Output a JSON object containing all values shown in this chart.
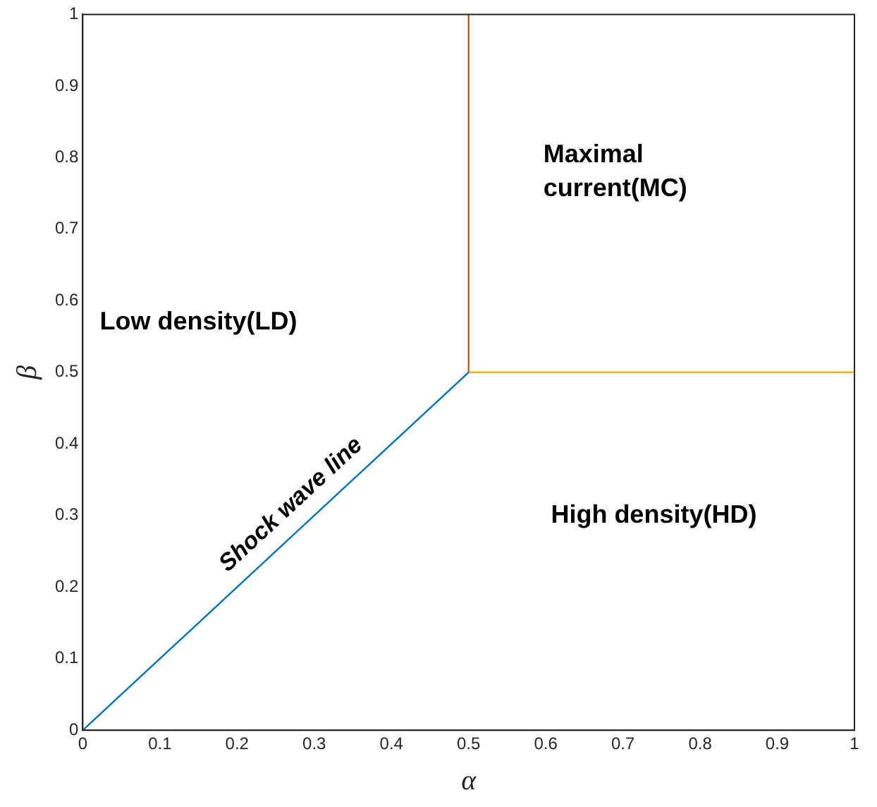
{
  "chart_data": {
    "type": "line",
    "xlabel": "α",
    "ylabel": "β",
    "xlim": [
      0,
      1
    ],
    "ylim": [
      0,
      1
    ],
    "xticks": [
      0,
      0.1,
      0.2,
      0.3,
      0.4,
      0.5,
      0.6,
      0.7,
      0.8,
      0.9,
      1
    ],
    "yticks": [
      0,
      0.1,
      0.2,
      0.3,
      0.4,
      0.5,
      0.6,
      0.7,
      0.8,
      0.9,
      1
    ],
    "grid": false,
    "legend": false,
    "marker": "none",
    "line_style": "solid",
    "series": [
      {
        "color": "#0072bd",
        "x": [
          0,
          0.5
        ],
        "values": [
          0,
          0.5
        ]
      },
      {
        "color": "#d95319",
        "x": [
          0.5,
          0.5
        ],
        "values": [
          0.5,
          1
        ]
      },
      {
        "color": "#edb120",
        "x": [
          0.5,
          1
        ],
        "values": [
          0.5,
          0.5
        ]
      }
    ],
    "annotations": [
      "Low density(LD)",
      "Maximal\ncurrent(MC)",
      "High density(HD)",
      "Shock wave line"
    ]
  }
}
